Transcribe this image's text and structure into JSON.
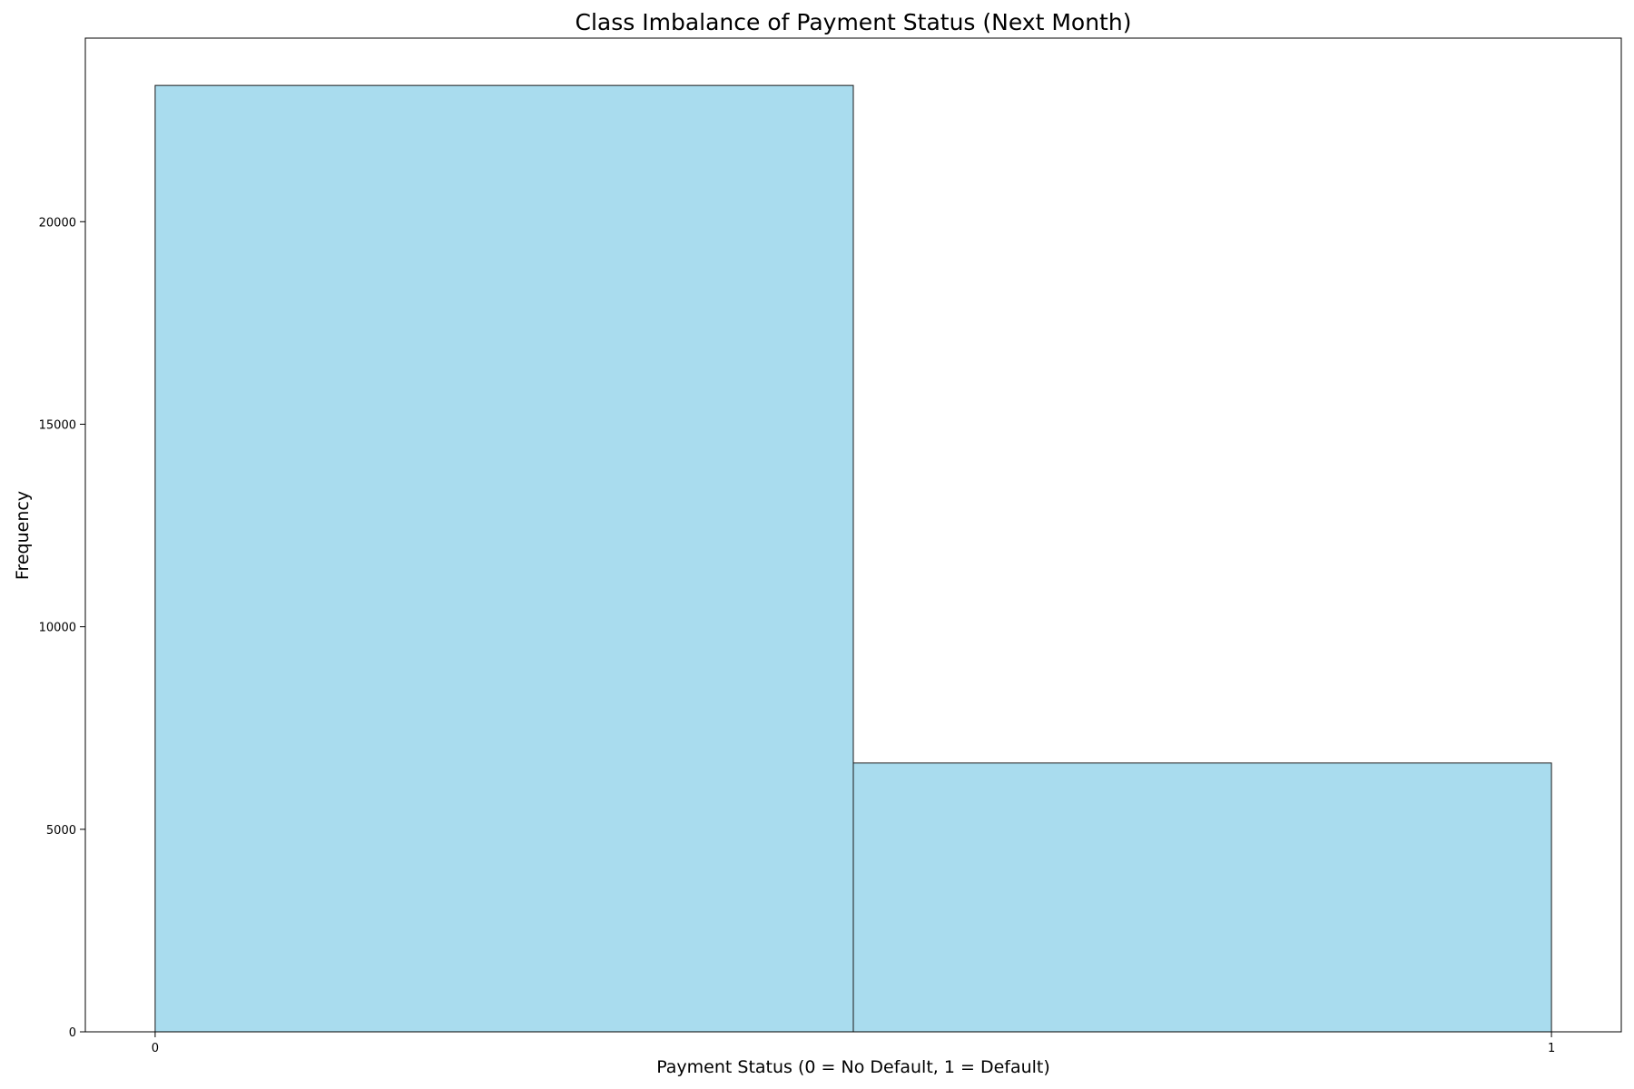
{
  "chart_data": {
    "type": "bar",
    "title": "Class Imbalance of Payment Status (Next Month)",
    "xlabel": "Payment Status (0 = No Default, 1 = Default)",
    "ylabel": "Frequency",
    "bins": [
      {
        "x0": 0,
        "x1": 0.5,
        "value": 23364
      },
      {
        "x0": 0.5,
        "x1": 1,
        "value": 6636
      }
    ],
    "xlim": [
      -0.05,
      1.05
    ],
    "ylim": [
      0,
      24532
    ],
    "xticks": [
      {
        "value": 0,
        "label": "0"
      },
      {
        "value": 1,
        "label": "1"
      }
    ],
    "yticks": [
      {
        "value": 0,
        "label": "0"
      },
      {
        "value": 5000,
        "label": "5000"
      },
      {
        "value": 10000,
        "label": "10000"
      },
      {
        "value": 15000,
        "label": "15000"
      },
      {
        "value": 20000,
        "label": "20000"
      }
    ],
    "grid": false,
    "bar_color": "#a9dcee",
    "edge_color": "#1a1a1a"
  }
}
